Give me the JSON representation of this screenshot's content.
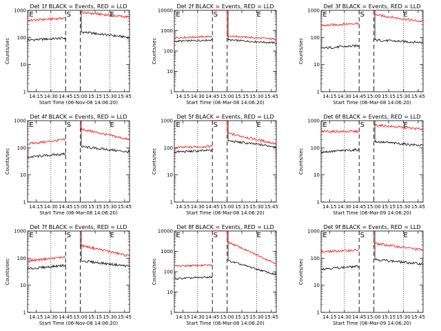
{
  "chart_data": [
    {
      "type": "line",
      "title": "Det 1f BLACK = Events, RED = LLD",
      "xlabel": "Start Time (06-Nov-08 14:06:20)",
      "ylabel": "Counts/sec",
      "yscale": "log",
      "ylim": [
        1,
        1000
      ],
      "yticks": [
        "1",
        "10",
        "100",
        "1000"
      ],
      "xlim": [
        "14:06:20",
        "15:50"
      ],
      "xticks": [
        "14:15",
        "14:30",
        "14:45",
        "15:00",
        "15:15",
        "15:30",
        "15:45"
      ],
      "dotted_vlines": [
        "14:30",
        "15:30"
      ],
      "dashed_vlines": [
        "14:45",
        "15:00"
      ],
      "markers": [
        {
          "label": "E",
          "x": "14:08"
        },
        {
          "label": "S",
          "x": "14:46"
        },
        {
          "label": "E",
          "x": "15:30"
        }
      ],
      "series": [
        {
          "color": "#000000",
          "segments": [
            {
              "x": [
                "14:06",
                "14:45"
              ],
              "y": [
                80,
                95
              ]
            },
            {
              "x": [
                "15:01",
                "15:50"
              ],
              "y": [
                160,
                100
              ]
            }
          ]
        },
        {
          "color": "#ff0000",
          "segments": [
            {
              "x": [
                "14:06",
                "14:45"
              ],
              "y": [
                420,
                520
              ]
            },
            {
              "x": [
                "15:00",
                "15:50"
              ],
              "y": [
                850,
                560
              ]
            }
          ]
        }
      ]
    },
    {
      "type": "line",
      "title": "Det 2f BLACK = Events, RED = LLD",
      "xlabel": "Start Time (06-Mar-08 14:06:20)",
      "ylabel": "Counts/sec",
      "yscale": "log",
      "ylim": [
        1,
        10000
      ],
      "yticks": [
        "1",
        "10",
        "100",
        "1000",
        "10000"
      ],
      "xlim": [
        "14:06:20",
        "15:50"
      ],
      "xticks": [
        "14:15",
        "14:30",
        "14:45",
        "15:00",
        "15:15",
        "15:30",
        "15:45"
      ],
      "dotted_vlines": [
        "14:30",
        "15:30"
      ],
      "dashed_vlines": [
        "14:45",
        "15:00"
      ],
      "markers": [
        {
          "label": "E",
          "x": "14:08"
        },
        {
          "label": "S",
          "x": "14:46"
        },
        {
          "label": "E",
          "x": "15:30"
        }
      ],
      "series": [
        {
          "color": "#000000",
          "segments": [
            {
              "x": [
                "14:06",
                "14:45"
              ],
              "y": [
                300,
                350
              ]
            },
            {
              "x": [
                "15:01",
                "15:50"
              ],
              "y": [
                350,
                250
              ]
            }
          ]
        },
        {
          "color": "#ff0000",
          "segments": [
            {
              "x": [
                "14:06",
                "14:45"
              ],
              "y": [
                450,
                520
              ]
            },
            {
              "x": [
                "14:45",
                "15:00"
              ],
              "y": [
                12000,
                12000
              ]
            },
            {
              "x": [
                "15:00",
                "15:50"
              ],
              "y": [
                560,
                380
              ]
            }
          ]
        }
      ]
    },
    {
      "type": "line",
      "title": "Det 3f BLACK = Events, RED = LLD",
      "xlabel": "Start Time (06-Mar-08 14:06:20)",
      "ylabel": "Counts/sec",
      "yscale": "log",
      "ylim": [
        1,
        1000
      ],
      "yticks": [
        "1",
        "10",
        "100",
        "1000"
      ],
      "xlim": [
        "14:06:20",
        "15:50"
      ],
      "xticks": [
        "14:15",
        "14:30",
        "14:45",
        "15:00",
        "15:15",
        "15:30",
        "15:45"
      ],
      "dotted_vlines": [
        "14:30",
        "15:30"
      ],
      "dashed_vlines": [
        "14:45",
        "15:00"
      ],
      "markers": [
        {
          "label": "E",
          "x": "14:08"
        },
        {
          "label": "S",
          "x": "14:46"
        },
        {
          "label": "E",
          "x": "15:30"
        }
      ],
      "series": [
        {
          "color": "#000000",
          "segments": [
            {
              "x": [
                "14:06",
                "14:45"
              ],
              "y": [
                40,
                50
              ]
            },
            {
              "x": [
                "15:01",
                "15:50"
              ],
              "y": [
                80,
                65
              ]
            }
          ]
        },
        {
          "color": "#ff0000",
          "segments": [
            {
              "x": [
                "14:06",
                "14:45"
              ],
              "y": [
                270,
                340
              ]
            },
            {
              "x": [
                "15:00",
                "15:50"
              ],
              "y": [
                700,
                380
              ]
            }
          ]
        }
      ]
    },
    {
      "type": "line",
      "title": "Det 4f BLACK = Events, RED = LLD",
      "xlabel": "Start Time (06-Mar-08 14:06:20)",
      "ylabel": "Counts/sec",
      "yscale": "log",
      "ylim": [
        1,
        1000
      ],
      "yticks": [
        "1",
        "10",
        "100",
        "1000"
      ],
      "xlim": [
        "14:06:20",
        "15:50"
      ],
      "xticks": [
        "14:15",
        "14:30",
        "14:45",
        "15:00",
        "15:15",
        "15:30",
        "15:45"
      ],
      "dotted_vlines": [
        "14:30",
        "15:30"
      ],
      "dashed_vlines": [
        "14:45",
        "15:00"
      ],
      "markers": [
        {
          "label": "E",
          "x": "14:08"
        },
        {
          "label": "S",
          "x": "14:46"
        },
        {
          "label": "E",
          "x": "15:30"
        }
      ],
      "series": [
        {
          "color": "#000000",
          "segments": [
            {
              "x": [
                "14:06",
                "14:45"
              ],
              "y": [
                45,
                60
              ]
            },
            {
              "x": [
                "15:01",
                "15:50"
              ],
              "y": [
                110,
                70
              ]
            }
          ]
        },
        {
          "color": "#ff0000",
          "segments": [
            {
              "x": [
                "14:06",
                "14:45"
              ],
              "y": [
                140,
                200
              ]
            },
            {
              "x": [
                "15:00",
                "15:50"
              ],
              "y": [
                500,
                200
              ]
            }
          ]
        }
      ]
    },
    {
      "type": "line",
      "title": "Det 5f BLACK = Events, RED = LLD",
      "xlabel": "Start Time (06-Mar-08 14:06:20)",
      "ylabel": "Counts/sec",
      "yscale": "log",
      "ylim": [
        1,
        1000
      ],
      "yticks": [
        "1",
        "10",
        "100",
        "1000"
      ],
      "xlim": [
        "14:06:20",
        "15:50"
      ],
      "xticks": [
        "14:15",
        "14:30",
        "14:45",
        "15:00",
        "15:15",
        "15:30",
        "15:45"
      ],
      "dotted_vlines": [
        "14:30",
        "15:30"
      ],
      "dashed_vlines": [
        "14:45",
        "15:00"
      ],
      "markers": [
        {
          "label": "E",
          "x": "14:08"
        },
        {
          "label": "S",
          "x": "14:46"
        },
        {
          "label": "E",
          "x": "15:30"
        }
      ],
      "series": [
        {
          "color": "#000000",
          "segments": [
            {
              "x": [
                "14:06",
                "14:45"
              ],
              "y": [
                70,
                80
              ]
            },
            {
              "x": [
                "15:01",
                "15:50"
              ],
              "y": [
                180,
                110
              ]
            }
          ]
        },
        {
          "color": "#ff0000",
          "segments": [
            {
              "x": [
                "14:06",
                "14:45"
              ],
              "y": [
                100,
                115
              ]
            },
            {
              "x": [
                "14:45",
                "15:00"
              ],
              "y": [
                1200,
                1200
              ]
            },
            {
              "x": [
                "15:00",
                "15:50"
              ],
              "y": [
                350,
                140
              ]
            }
          ]
        }
      ]
    },
    {
      "type": "line",
      "title": "Det 6f BLACK = Events, RED = LLD",
      "xlabel": "Start Time (06-Mar-09 14:06:20)",
      "ylabel": "Counts/sec",
      "yscale": "log",
      "ylim": [
        1,
        1000
      ],
      "yticks": [
        "1",
        "10",
        "100",
        "1000"
      ],
      "xlim": [
        "14:06:20",
        "15:50"
      ],
      "xticks": [
        "14:15",
        "14:30",
        "14:45",
        "15:00",
        "15:15",
        "15:30",
        "15:45"
      ],
      "dotted_vlines": [
        "14:30",
        "15:30"
      ],
      "dashed_vlines": [
        "14:45",
        "15:00"
      ],
      "markers": [
        {
          "label": "E",
          "x": "14:08"
        },
        {
          "label": "S",
          "x": "14:46"
        },
        {
          "label": "E",
          "x": "15:30"
        }
      ],
      "series": [
        {
          "color": "#000000",
          "segments": [
            {
              "x": [
                "14:06",
                "14:45"
              ],
              "y": [
                70,
                85
              ]
            },
            {
              "x": [
                "15:01",
                "15:50"
              ],
              "y": [
                170,
                120
              ]
            }
          ]
        },
        {
          "color": "#ff0000",
          "segments": [
            {
              "x": [
                "14:06",
                "14:45"
              ],
              "y": [
                400,
                400
              ]
            },
            {
              "x": [
                "15:00",
                "15:50"
              ],
              "y": [
                700,
                480
              ]
            }
          ]
        }
      ]
    },
    {
      "type": "line",
      "title": "Det 7f BLACK = Events, RED = LLD",
      "xlabel": "Start Time (06-Nov-08 14:06:20)",
      "ylabel": "Counts/sec",
      "yscale": "log",
      "ylim": [
        1,
        1000
      ],
      "yticks": [
        "1",
        "10",
        "100",
        "1000"
      ],
      "xlim": [
        "14:06:20",
        "15:50"
      ],
      "xticks": [
        "14:15",
        "14:30",
        "14:45",
        "15:00",
        "15:15",
        "15:30",
        "15:45"
      ],
      "dotted_vlines": [
        "14:30",
        "15:30"
      ],
      "dashed_vlines": [
        "14:45",
        "15:00"
      ],
      "markers": [
        {
          "label": "E",
          "x": "14:08"
        },
        {
          "label": "S",
          "x": "14:46"
        },
        {
          "label": "E",
          "x": "15:30"
        }
      ],
      "series": [
        {
          "color": "#000000",
          "segments": [
            {
              "x": [
                "14:06",
                "14:45"
              ],
              "y": [
                40,
                55
              ]
            },
            {
              "x": [
                "15:01",
                "15:50"
              ],
              "y": [
                80,
                50
              ]
            }
          ]
        },
        {
          "color": "#ff0000",
          "segments": [
            {
              "x": [
                "14:06",
                "14:45"
              ],
              "y": [
                80,
                110
              ]
            },
            {
              "x": [
                "15:00",
                "15:50"
              ],
              "y": [
                300,
                120
              ]
            }
          ]
        }
      ]
    },
    {
      "type": "line",
      "title": "Det 8f BLACK = Events, RED = LLD",
      "xlabel": "Start Time (06-Mar-08 14:06:20)",
      "ylabel": "Counts/sec",
      "yscale": "log",
      "ylim": [
        1,
        10000
      ],
      "yticks": [
        "1",
        "10",
        "100",
        "1000",
        "10000"
      ],
      "xlim": [
        "14:06:20",
        "15:50"
      ],
      "xticks": [
        "14:15",
        "14:30",
        "14:45",
        "15:00",
        "15:15",
        "15:30",
        "15:45"
      ],
      "dotted_vlines": [
        "14:30",
        "15:30"
      ],
      "dashed_vlines": [
        "14:45",
        "15:00"
      ],
      "markers": [
        {
          "label": "E",
          "x": "14:08"
        },
        {
          "label": "S",
          "x": "14:46"
        },
        {
          "label": "E",
          "x": "15:30"
        }
      ],
      "series": [
        {
          "color": "#000000",
          "segments": [
            {
              "x": [
                "14:06",
                "14:45"
              ],
              "y": [
                45,
                55
              ]
            },
            {
              "x": [
                "15:01",
                "15:50"
              ],
              "y": [
                350,
                70
              ]
            }
          ]
        },
        {
          "color": "#ff0000",
          "segments": [
            {
              "x": [
                "14:06",
                "14:45"
              ],
              "y": [
                190,
                210
              ]
            },
            {
              "x": [
                "14:45",
                "15:00"
              ],
              "y": [
                12000,
                12000
              ]
            },
            {
              "x": [
                "15:00",
                "15:50"
              ],
              "y": [
                3000,
                250
              ]
            }
          ]
        }
      ]
    },
    {
      "type": "line",
      "title": "Det 9f BLACK = Events, RED = LLD",
      "xlabel": "Start Time (06-Mar-09 14:06:20)",
      "ylabel": "Counts/sec",
      "yscale": "log",
      "ylim": [
        1,
        1000
      ],
      "yticks": [
        "1",
        "10",
        "100",
        "1000"
      ],
      "xlim": [
        "14:06:20",
        "15:50"
      ],
      "xticks": [
        "14:15",
        "14:30",
        "14:45",
        "15:00",
        "15:15",
        "15:30",
        "15:45"
      ],
      "dotted_vlines": [
        "14:30",
        "15:30"
      ],
      "dashed_vlines": [
        "14:45",
        "15:00"
      ],
      "markers": [
        {
          "label": "E",
          "x": "14:08"
        },
        {
          "label": "S",
          "x": "14:46"
        },
        {
          "label": "E",
          "x": "15:30"
        }
      ],
      "series": [
        {
          "color": "#000000",
          "segments": [
            {
              "x": [
                "14:06",
                "14:45"
              ],
              "y": [
                40,
                50
              ]
            },
            {
              "x": [
                "15:01",
                "15:50"
              ],
              "y": [
                90,
                60
              ]
            }
          ]
        },
        {
          "color": "#ff0000",
          "segments": [
            {
              "x": [
                "14:06",
                "14:45"
              ],
              "y": [
                170,
                200
              ]
            },
            {
              "x": [
                "15:00",
                "15:50"
              ],
              "y": [
                350,
                200
              ]
            }
          ]
        }
      ]
    }
  ]
}
